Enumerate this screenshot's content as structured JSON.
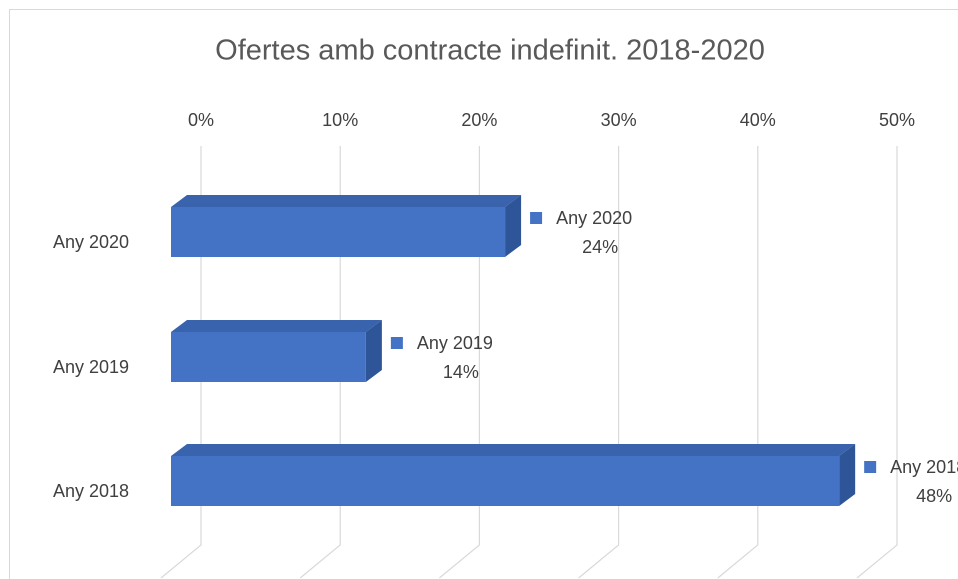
{
  "chart_data": {
    "type": "bar3d_horizontal",
    "title": "Ofertes amb contracte indefinit. 2018-2020",
    "categories": [
      "Any 2020",
      "Any 2019",
      "Any 2018"
    ],
    "values": [
      24,
      14,
      48
    ],
    "value_labels": [
      "24%",
      "14%",
      "48%"
    ],
    "color": "#4472c4",
    "xlim": [
      0,
      50
    ],
    "xticks": [
      {
        "value": 0,
        "label": "0%"
      },
      {
        "value": 10,
        "label": "10%"
      },
      {
        "value": 20,
        "label": "20%"
      },
      {
        "value": 30,
        "label": "30%"
      },
      {
        "value": 40,
        "label": "40%"
      },
      {
        "value": 50,
        "label": "50%"
      }
    ],
    "grid": true
  }
}
